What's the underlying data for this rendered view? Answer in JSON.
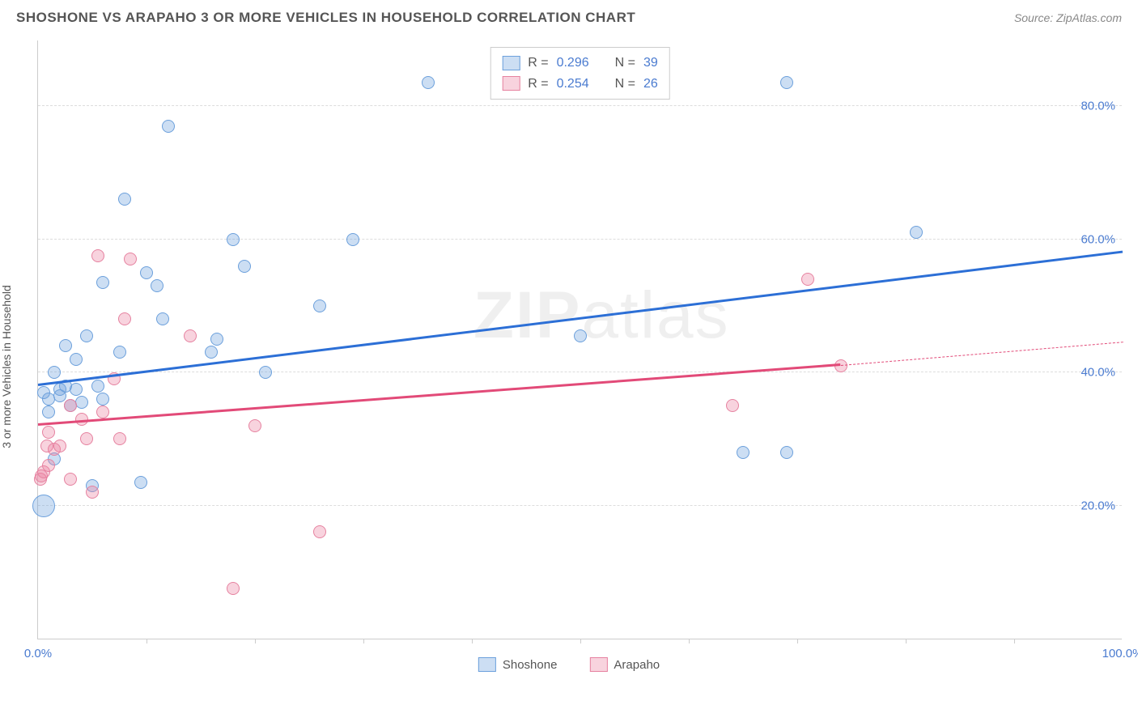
{
  "title": "SHOSHONE VS ARAPAHO 3 OR MORE VEHICLES IN HOUSEHOLD CORRELATION CHART",
  "source": "Source: ZipAtlas.com",
  "ylabel": "3 or more Vehicles in Household",
  "watermark_part1": "ZIP",
  "watermark_part2": "atlas",
  "chart": {
    "type": "scatter",
    "background_color": "#ffffff",
    "grid_color": "#dddddd",
    "axis_color": "#cccccc",
    "tick_label_color": "#4a7bd0",
    "xlim": [
      0,
      100
    ],
    "ylim": [
      0,
      90
    ],
    "yticks": [
      {
        "value": 20,
        "label": "20.0%"
      },
      {
        "value": 40,
        "label": "40.0%"
      },
      {
        "value": 60,
        "label": "60.0%"
      },
      {
        "value": 80,
        "label": "80.0%"
      }
    ],
    "xticks_major": [
      {
        "value": 0,
        "label": "0.0%"
      },
      {
        "value": 100,
        "label": "100.0%"
      }
    ],
    "xticks_minor": [
      10,
      20,
      30,
      40,
      50,
      60,
      70,
      80,
      90
    ],
    "series": [
      {
        "name": "Shoshone",
        "color_fill": "rgba(108,160,220,0.35)",
        "color_stroke": "#6ca0dc",
        "trend_color": "#2c6fd6",
        "R": "0.296",
        "N": "39",
        "trend": {
          "x1": 0,
          "y1": 38,
          "x2": 100,
          "y2": 58
        },
        "radius": 8,
        "points": [
          {
            "x": 0.5,
            "y": 20,
            "r": 14
          },
          {
            "x": 0.5,
            "y": 37
          },
          {
            "x": 1,
            "y": 36
          },
          {
            "x": 1,
            "y": 34
          },
          {
            "x": 1.5,
            "y": 27
          },
          {
            "x": 1.5,
            "y": 40
          },
          {
            "x": 2,
            "y": 36.5
          },
          {
            "x": 2,
            "y": 37.5
          },
          {
            "x": 2.5,
            "y": 38
          },
          {
            "x": 2.5,
            "y": 44
          },
          {
            "x": 3,
            "y": 35
          },
          {
            "x": 3.5,
            "y": 37.5
          },
          {
            "x": 3.5,
            "y": 42
          },
          {
            "x": 4,
            "y": 35.5
          },
          {
            "x": 4.5,
            "y": 45.5
          },
          {
            "x": 5,
            "y": 23
          },
          {
            "x": 5.5,
            "y": 38
          },
          {
            "x": 6,
            "y": 36
          },
          {
            "x": 6,
            "y": 53.5
          },
          {
            "x": 7.5,
            "y": 43
          },
          {
            "x": 8,
            "y": 66
          },
          {
            "x": 9.5,
            "y": 23.5
          },
          {
            "x": 10,
            "y": 55
          },
          {
            "x": 11,
            "y": 53
          },
          {
            "x": 11.5,
            "y": 48
          },
          {
            "x": 12,
            "y": 77
          },
          {
            "x": 16,
            "y": 43
          },
          {
            "x": 16.5,
            "y": 45
          },
          {
            "x": 18,
            "y": 60
          },
          {
            "x": 19,
            "y": 56
          },
          {
            "x": 21,
            "y": 40
          },
          {
            "x": 26,
            "y": 50
          },
          {
            "x": 29,
            "y": 60
          },
          {
            "x": 36,
            "y": 83.5
          },
          {
            "x": 50,
            "y": 45.5
          },
          {
            "x": 65,
            "y": 28
          },
          {
            "x": 69,
            "y": 28
          },
          {
            "x": 69,
            "y": 83.5
          },
          {
            "x": 81,
            "y": 61
          }
        ]
      },
      {
        "name": "Arapaho",
        "color_fill": "rgba(235,130,160,0.35)",
        "color_stroke": "#e682a0",
        "trend_color": "#e24a78",
        "R": "0.254",
        "N": "26",
        "trend": {
          "x1": 0,
          "y1": 32,
          "x2": 74,
          "y2": 41
        },
        "trend_dashed": {
          "x1": 74,
          "y1": 41,
          "x2": 100,
          "y2": 44.5
        },
        "radius": 8,
        "points": [
          {
            "x": 0.2,
            "y": 24
          },
          {
            "x": 0.3,
            "y": 24.5
          },
          {
            "x": 0.5,
            "y": 25
          },
          {
            "x": 0.8,
            "y": 29
          },
          {
            "x": 1,
            "y": 26
          },
          {
            "x": 1,
            "y": 31
          },
          {
            "x": 1.5,
            "y": 28.5
          },
          {
            "x": 2,
            "y": 29
          },
          {
            "x": 3,
            "y": 35
          },
          {
            "x": 3,
            "y": 24
          },
          {
            "x": 4,
            "y": 33
          },
          {
            "x": 4.5,
            "y": 30
          },
          {
            "x": 5,
            "y": 22
          },
          {
            "x": 5.5,
            "y": 57.5
          },
          {
            "x": 6,
            "y": 34
          },
          {
            "x": 7,
            "y": 39
          },
          {
            "x": 7.5,
            "y": 30
          },
          {
            "x": 8,
            "y": 48
          },
          {
            "x": 8.5,
            "y": 57
          },
          {
            "x": 14,
            "y": 45.5
          },
          {
            "x": 18,
            "y": 7.5
          },
          {
            "x": 20,
            "y": 32
          },
          {
            "x": 26,
            "y": 16
          },
          {
            "x": 64,
            "y": 35
          },
          {
            "x": 71,
            "y": 54
          },
          {
            "x": 74,
            "y": 41
          }
        ]
      }
    ]
  },
  "legend_labels": {
    "r_prefix": "R = ",
    "n_prefix": "N = "
  }
}
